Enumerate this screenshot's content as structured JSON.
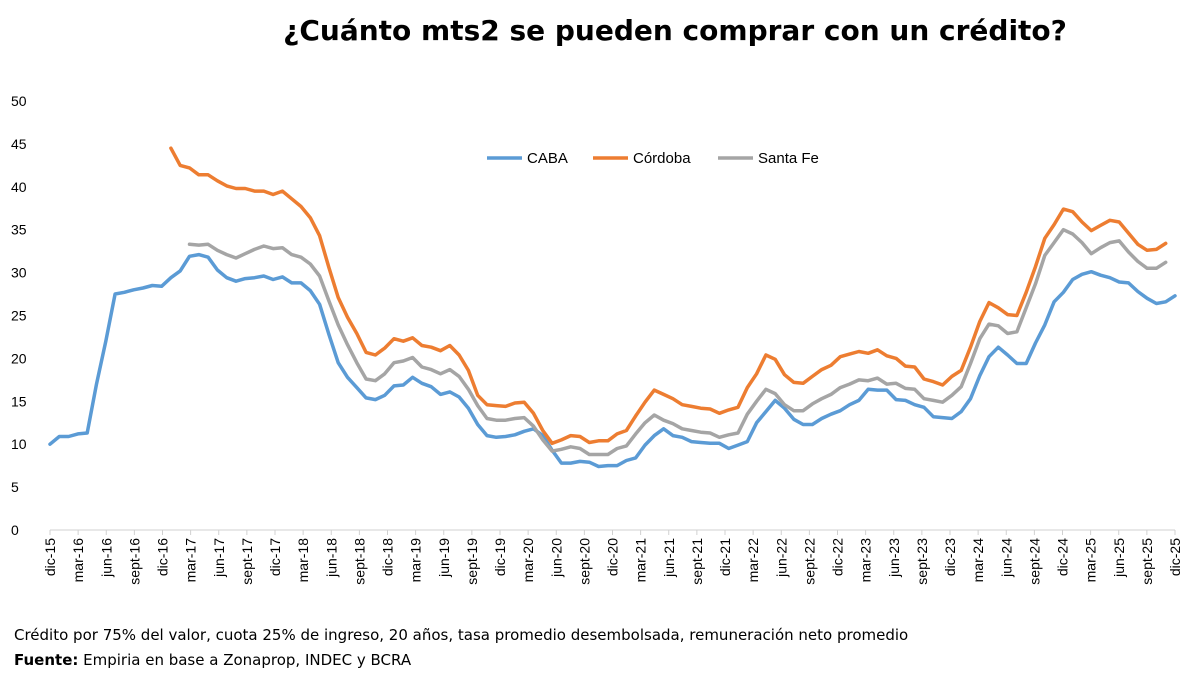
{
  "chart_data": {
    "type": "line",
    "title": "¿Cuánto mts2 se pueden comprar con un crédito?",
    "xlabel": "",
    "ylabel": "",
    "ylim": [
      0,
      50
    ],
    "yticks": [
      0,
      5,
      10,
      15,
      20,
      25,
      30,
      35,
      40,
      45,
      50
    ],
    "legend_position": "top-center",
    "grid": false,
    "x_tick_labels": [
      "dic-15",
      "mar-16",
      "jun-16",
      "sept-16",
      "dic-16",
      "mar-17",
      "jun-17",
      "sept-17",
      "dic-17",
      "mar-18",
      "jun-18",
      "sept-18",
      "dic-18",
      "mar-19",
      "jun-19",
      "sept-19",
      "dic-19",
      "mar-20",
      "jun-20",
      "sept-20",
      "dic-20",
      "mar-21",
      "jun-21",
      "sept-21",
      "dic-21",
      "mar-22",
      "jun-22",
      "sept-22",
      "dic-22",
      "mar-23",
      "jun-23",
      "sept-23",
      "dic-23",
      "mar-24",
      "jun-24",
      "sept-24",
      "dic-24",
      "mar-25",
      "jun-25",
      "sept-25",
      "dic-25"
    ],
    "series": [
      {
        "name": "CABA",
        "color": "#5B9BD5",
        "values": [
          10.0,
          10.9,
          10.9,
          11.2,
          11.3,
          17.0,
          22.0,
          27.5,
          27.7,
          28.0,
          28.2,
          28.5,
          28.4,
          29.4,
          30.2,
          31.9,
          32.1,
          31.8,
          30.3,
          29.4,
          29.0,
          29.3,
          29.4,
          29.6,
          29.2,
          29.5,
          28.8,
          28.8,
          27.9,
          26.3,
          22.8,
          19.5,
          17.8,
          16.6,
          15.4,
          15.2,
          15.7,
          16.8,
          16.9,
          17.8,
          17.1,
          16.7,
          15.8,
          16.1,
          15.5,
          14.2,
          12.3,
          11.0,
          10.8,
          10.9,
          11.1,
          11.5,
          11.8,
          11.0,
          9.3,
          7.8,
          7.8,
          8.0,
          7.9,
          7.4,
          7.5,
          7.5,
          8.1,
          8.4,
          9.9,
          11.0,
          11.8,
          11.0,
          10.8,
          10.3,
          10.2,
          10.1,
          10.1,
          9.5,
          9.9,
          10.3,
          12.5,
          13.8,
          15.1,
          14.2,
          12.9,
          12.3,
          12.3,
          13.0,
          13.5,
          13.9,
          14.6,
          15.1,
          16.4,
          16.3,
          16.3,
          15.2,
          15.1,
          14.6,
          14.3,
          13.2,
          13.1,
          13.0,
          13.8,
          15.3,
          18.0,
          20.2,
          21.3,
          20.4,
          19.4,
          19.4,
          21.8,
          23.9,
          26.6,
          27.7,
          29.2,
          29.8,
          30.1,
          29.7,
          29.4,
          28.9,
          28.8,
          27.8,
          27.0,
          26.4,
          26.6,
          27.3
        ]
      },
      {
        "name": "Córdoba",
        "color": "#ED7D31",
        "start_index": 13,
        "values": [
          44.5,
          42.5,
          42.2,
          41.4,
          41.4,
          40.7,
          40.1,
          39.8,
          39.8,
          39.5,
          39.5,
          39.1,
          39.5,
          38.6,
          37.7,
          36.4,
          34.3,
          30.6,
          27.1,
          24.8,
          22.9,
          20.7,
          20.4,
          21.2,
          22.3,
          22.0,
          22.4,
          21.5,
          21.3,
          20.9,
          21.5,
          20.4,
          18.6,
          15.7,
          14.6,
          14.5,
          14.4,
          14.8,
          14.9,
          13.6,
          11.6,
          10.1,
          10.5,
          11.0,
          10.9,
          10.2,
          10.4,
          10.4,
          11.2,
          11.6,
          13.3,
          14.9,
          16.3,
          15.8,
          15.3,
          14.6,
          14.4,
          14.2,
          14.1,
          13.6,
          14.0,
          14.3,
          16.6,
          18.2,
          20.4,
          19.9,
          18.1,
          17.2,
          17.1,
          17.9,
          18.7,
          19.2,
          20.2,
          20.5,
          20.8,
          20.6,
          21.0,
          20.3,
          20.0,
          19.1,
          19.0,
          17.6,
          17.3,
          16.9,
          17.9,
          18.6,
          21.3,
          24.3,
          26.5,
          25.9,
          25.1,
          25.0,
          27.7,
          30.7,
          34.0,
          35.6,
          37.4,
          37.1,
          35.9,
          34.9,
          35.5,
          36.1,
          35.9,
          34.6,
          33.3,
          32.6,
          32.7,
          33.4
        ]
      },
      {
        "name": "Santa Fe",
        "color": "#A5A5A5",
        "start_index": 15,
        "values": [
          33.3,
          33.2,
          33.3,
          32.6,
          32.1,
          31.7,
          32.2,
          32.7,
          33.1,
          32.8,
          32.9,
          32.1,
          31.8,
          31.0,
          29.6,
          26.7,
          23.9,
          21.6,
          19.5,
          17.6,
          17.4,
          18.2,
          19.5,
          19.7,
          20.1,
          19.0,
          18.7,
          18.2,
          18.7,
          17.9,
          16.4,
          14.5,
          13.0,
          12.8,
          12.8,
          13.0,
          13.1,
          12.1,
          10.5,
          9.2,
          9.4,
          9.7,
          9.5,
          8.8,
          8.8,
          8.8,
          9.5,
          9.8,
          11.2,
          12.5,
          13.4,
          12.8,
          12.4,
          11.8,
          11.6,
          11.4,
          11.3,
          10.8,
          11.1,
          11.3,
          13.5,
          15.0,
          16.4,
          15.9,
          14.6,
          13.9,
          13.9,
          14.7,
          15.3,
          15.8,
          16.6,
          17.0,
          17.5,
          17.4,
          17.7,
          17.0,
          17.1,
          16.5,
          16.4,
          15.3,
          15.1,
          14.9,
          15.7,
          16.7,
          19.4,
          22.3,
          24.0,
          23.8,
          22.9,
          23.1,
          25.9,
          28.7,
          32.0,
          33.5,
          35.0,
          34.5,
          33.5,
          32.2,
          32.9,
          33.5,
          33.7,
          32.4,
          31.3,
          30.5,
          30.5,
          31.2
        ]
      }
    ]
  },
  "footer": {
    "note": "Crédito por 75% del valor, cuota 25% de ingreso, 20 años, tasa promedio desembolsada, remuneración neto promedio",
    "source_label": "Fuente:",
    "source_text": " Empiria en base a Zonaprop, INDEC y BCRA"
  }
}
